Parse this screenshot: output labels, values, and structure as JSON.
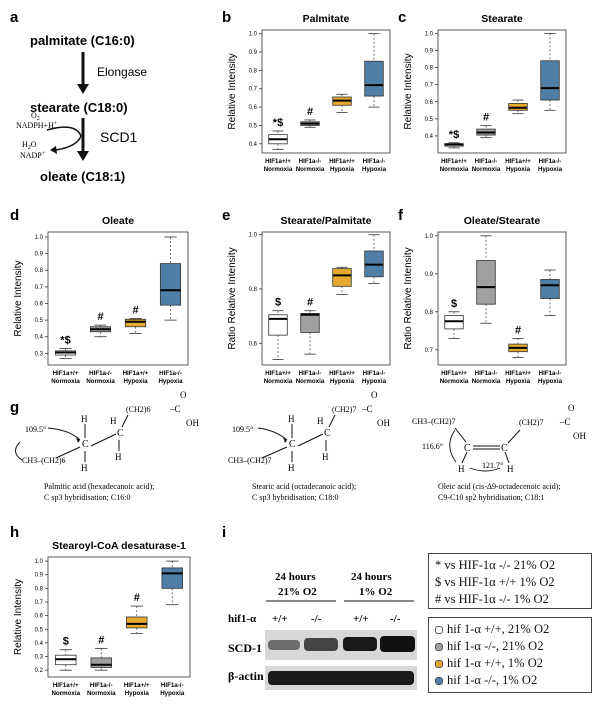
{
  "panels": {
    "a": "a",
    "b": "b",
    "c": "c",
    "d": "d",
    "e": "e",
    "f": "f",
    "g": "g",
    "h": "h",
    "i": "i"
  },
  "pathway": {
    "palmitate": "palmitate (C16:0)",
    "elongase": "Elongase",
    "stearate": "stearate (C18:0)",
    "scd1": "SCD1",
    "oleate": "oleate (C18:1)",
    "o2": "O",
    "o2_sub": "2",
    "nadph": "NADPH+H",
    "nadph_sup": "+",
    "h2o_h": "H",
    "h2o_sub": "2",
    "h2o_o": "O",
    "nadp": "NADP",
    "nadp_sup": "+"
  },
  "structures": {
    "palmitic": {
      "angle": "109.5°",
      "chain_left": "CH3–(CH2)6",
      "chain_right": "(CH2)6",
      "acid": "Palmitic acid (hexadecanoic  acid);",
      "hybrid": "C sp3 hybridisation;  C16:0"
    },
    "stearic": {
      "angle": "109.5°",
      "chain_left": "CH3–(CH2)7",
      "chain_right": "(CH2)7",
      "acid": "Stearic acid (octadecanoic acid);",
      "hybrid": "C sp3 hybridisation;  C18:0"
    },
    "oleic": {
      "angle1": "116.6°",
      "angle2": "121.7°",
      "chain_left": "CH3–(CH2)7",
      "chain_right": "(CH2)7",
      "acid": "Oleic acid (cis-Δ9-octadecenoic acid);",
      "hybrid": "C9-C10 sp2 hybridisation;  C18:1"
    }
  },
  "western": {
    "time1": "24 hours",
    "cond1": "21% O2",
    "time2": "24 hours",
    "cond2": "1% O2",
    "row_label": "hif1-α",
    "lane1": "+/+",
    "lane2": "-/-",
    "lane3": "+/+",
    "lane4": "-/-",
    "band1": "SCD-1",
    "band2": "β-actin"
  },
  "legend_sig": [
    "* vs HIF-1α -/- 21% O2",
    "$ vs HIF-1α +/+ 1% O2",
    "# vs HIF-1α -/- 1% O2"
  ],
  "legend_groups": [
    {
      "text": "hif 1-α +/+, 21% O2",
      "color": "#ffffff"
    },
    {
      "text": "hif 1-α -/-, 21% O2",
      "color": "#a0a0a0"
    },
    {
      "text": "hif 1-α +/+, 1% O2",
      "color": "#e6a92e"
    },
    {
      "text": "hif 1-α -/-, 1% O2",
      "color": "#4f7fa6"
    }
  ],
  "colors": {
    "group1": "#ffffff",
    "group2": "#a0a0a0",
    "group3": "#e6a92e",
    "group4": "#4f7fa6"
  },
  "chart_data": [
    {
      "id": "b",
      "type": "boxplot",
      "title": "Palmitate",
      "ylabel": "Relative Intensity",
      "ylim": [
        0.35,
        1.02
      ],
      "yticks": [
        0.4,
        0.5,
        0.6,
        0.7,
        0.8,
        0.9,
        1.0
      ],
      "categories": [
        [
          "HIF1a+/+",
          "Normoxia"
        ],
        [
          "HIF1a-/-",
          "Normoxia"
        ],
        [
          "HIF1a+/+",
          "Hypoxia"
        ],
        [
          "HIF1a-/-",
          "Hypoxia"
        ]
      ],
      "boxes": [
        {
          "min": 0.37,
          "q1": 0.4,
          "median": 0.425,
          "q3": 0.45,
          "max": 0.47,
          "marker": "*$"
        },
        {
          "min": 0.49,
          "q1": 0.5,
          "median": 0.51,
          "q3": 0.52,
          "max": 0.53,
          "marker": "#"
        },
        {
          "min": 0.57,
          "q1": 0.61,
          "median": 0.635,
          "q3": 0.655,
          "max": 0.67,
          "marker": ""
        },
        {
          "min": 0.6,
          "q1": 0.66,
          "median": 0.72,
          "q3": 0.85,
          "max": 1.0,
          "marker": ""
        }
      ]
    },
    {
      "id": "c",
      "type": "boxplot",
      "title": "Stearate",
      "ylabel": "Relative Intensity",
      "ylim": [
        0.3,
        1.02
      ],
      "yticks": [
        0.4,
        0.5,
        0.6,
        0.7,
        0.8,
        0.9,
        1.0
      ],
      "categories": [
        [
          "HIF1a+/+",
          "Normoxia"
        ],
        [
          "HIF1a-/-",
          "Normoxia"
        ],
        [
          "HIF1a+/+",
          "Hypoxia"
        ],
        [
          "HIF1a-/-",
          "Hypoxia"
        ]
      ],
      "boxes": [
        {
          "min": 0.33,
          "q1": 0.34,
          "median": 0.35,
          "q3": 0.355,
          "max": 0.36,
          "marker": "*$"
        },
        {
          "min": 0.39,
          "q1": 0.405,
          "median": 0.42,
          "q3": 0.44,
          "max": 0.46,
          "marker": "#"
        },
        {
          "min": 0.53,
          "q1": 0.55,
          "median": 0.565,
          "q3": 0.59,
          "max": 0.61,
          "marker": ""
        },
        {
          "min": 0.55,
          "q1": 0.61,
          "median": 0.68,
          "q3": 0.84,
          "max": 1.0,
          "marker": ""
        }
      ]
    },
    {
      "id": "d",
      "type": "boxplot",
      "title": "Oleate",
      "ylabel": "Relative Intensity",
      "ylim": [
        0.23,
        1.03
      ],
      "yticks": [
        0.3,
        0.4,
        0.5,
        0.6,
        0.7,
        0.8,
        0.9,
        1.0
      ],
      "categories": [
        [
          "HIF1a+/+",
          "Normoxia"
        ],
        [
          "HIF1a-/-",
          "Normoxia"
        ],
        [
          "HIF1a+/+",
          "Hypoxia"
        ],
        [
          "HIF1a-/-",
          "Hypoxia"
        ]
      ],
      "boxes": [
        {
          "min": 0.27,
          "q1": 0.29,
          "median": 0.305,
          "q3": 0.315,
          "max": 0.33,
          "marker": "*$"
        },
        {
          "min": 0.4,
          "q1": 0.43,
          "median": 0.445,
          "q3": 0.46,
          "max": 0.47,
          "marker": "#"
        },
        {
          "min": 0.42,
          "q1": 0.46,
          "median": 0.49,
          "q3": 0.505,
          "max": 0.51,
          "marker": "#"
        },
        {
          "min": 0.5,
          "q1": 0.59,
          "median": 0.68,
          "q3": 0.84,
          "max": 1.0,
          "marker": ""
        }
      ]
    },
    {
      "id": "e",
      "type": "boxplot",
      "title": "Stearate/Palmitate",
      "ylabel": "Ratio Relative Intensity",
      "ylim": [
        0.52,
        1.01
      ],
      "yticks": [
        0.6,
        0.8,
        1.0
      ],
      "categories": [
        [
          "HIF1a+/+",
          "Normoxia"
        ],
        [
          "HIF1a-/-",
          "Normoxia"
        ],
        [
          "HIF1a+/+",
          "Hypoxia"
        ],
        [
          "HIF1a-/-",
          "Hypoxia"
        ]
      ],
      "boxes": [
        {
          "min": 0.54,
          "q1": 0.63,
          "median": 0.69,
          "q3": 0.705,
          "max": 0.72,
          "marker": "$"
        },
        {
          "min": 0.56,
          "q1": 0.64,
          "median": 0.705,
          "q3": 0.71,
          "max": 0.72,
          "marker": "#"
        },
        {
          "min": 0.78,
          "q1": 0.81,
          "median": 0.85,
          "q3": 0.875,
          "max": 0.88,
          "marker": ""
        },
        {
          "min": 0.82,
          "q1": 0.845,
          "median": 0.89,
          "q3": 0.94,
          "max": 1.0,
          "marker": ""
        }
      ]
    },
    {
      "id": "f",
      "type": "boxplot",
      "title": "Oleate/Stearate",
      "ylabel": "Ratio Relative Intensity",
      "ylim": [
        0.66,
        1.01
      ],
      "yticks": [
        0.7,
        0.8,
        0.9,
        1.0
      ],
      "categories": [
        [
          "HIF1a+/+",
          "Normoxia"
        ],
        [
          "HIF1a-/-",
          "Normoxia"
        ],
        [
          "HIF1a+/+",
          "Hypoxia"
        ],
        [
          "HIF1a-/-",
          "Hypoxia"
        ]
      ],
      "boxes": [
        {
          "min": 0.73,
          "q1": 0.755,
          "median": 0.775,
          "q3": 0.79,
          "max": 0.8,
          "marker": "$"
        },
        {
          "min": 0.77,
          "q1": 0.82,
          "median": 0.865,
          "q3": 0.935,
          "max": 1.0,
          "marker": ""
        },
        {
          "min": 0.68,
          "q1": 0.695,
          "median": 0.705,
          "q3": 0.715,
          "max": 0.73,
          "marker": "#"
        },
        {
          "min": 0.79,
          "q1": 0.835,
          "median": 0.87,
          "q3": 0.885,
          "max": 0.91,
          "marker": ""
        }
      ]
    },
    {
      "id": "h",
      "type": "boxplot",
      "title": "Stearoyl-CoA desaturase-1",
      "ylabel": "Relative Intensity",
      "ylim": [
        0.15,
        1.03
      ],
      "yticks": [
        0.2,
        0.3,
        0.4,
        0.5,
        0.6,
        0.7,
        0.8,
        0.9,
        1.0
      ],
      "categories": [
        [
          "HIF1a+/+",
          "Normoxia"
        ],
        [
          "HIF1a-/-",
          "Normoxia"
        ],
        [
          "HIF1a+/+",
          "Hypoxia"
        ],
        [
          "HIF1a-/-",
          "Hypoxia"
        ]
      ],
      "boxes": [
        {
          "min": 0.2,
          "q1": 0.24,
          "median": 0.28,
          "q3": 0.31,
          "max": 0.35,
          "marker": "$"
        },
        {
          "min": 0.2,
          "q1": 0.22,
          "median": 0.24,
          "q3": 0.29,
          "max": 0.36,
          "marker": "#"
        },
        {
          "min": 0.47,
          "q1": 0.51,
          "median": 0.54,
          "q3": 0.59,
          "max": 0.67,
          "marker": "#"
        },
        {
          "min": 0.68,
          "q1": 0.8,
          "median": 0.91,
          "q3": 0.95,
          "max": 1.0,
          "marker": ""
        }
      ]
    }
  ]
}
